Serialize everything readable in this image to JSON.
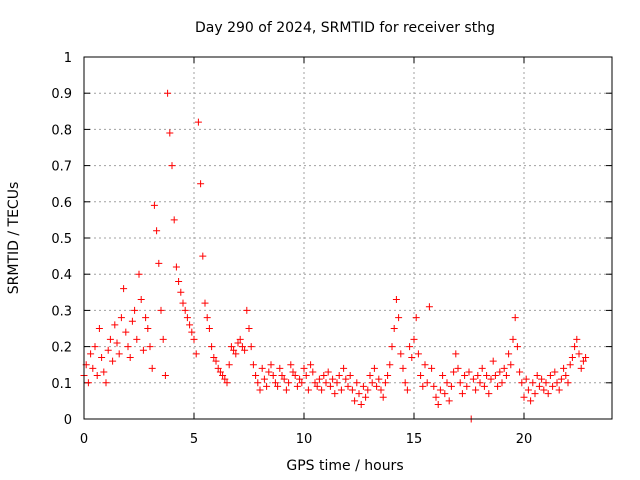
{
  "chart_data": {
    "type": "scatter",
    "title": "Day 290 of 2024, SRMTID for receiver sthg",
    "xlabel": "GPS time / hours",
    "ylabel": "SRMTID / TECUs",
    "xlim": [
      0,
      24
    ],
    "ylim": [
      0,
      1
    ],
    "xticks": [
      0,
      5,
      10,
      15,
      20
    ],
    "xtick_labels": [
      "0",
      "5",
      "10",
      "15",
      "20"
    ],
    "yticks": [
      0,
      0.1,
      0.2,
      0.3,
      0.4,
      0.5,
      0.6,
      0.7,
      0.8,
      0.9,
      1
    ],
    "ytick_labels": [
      "0",
      "0.1",
      "0.2",
      "0.3",
      "0.4",
      "0.5",
      "0.6",
      "0.7",
      "0.8",
      "0.9",
      "1"
    ],
    "grid": true,
    "marker": "+",
    "color": "#ff0000",
    "series": [
      {
        "name": "SRMTID",
        "points": [
          [
            0.0,
            0.12
          ],
          [
            0.1,
            0.15
          ],
          [
            0.2,
            0.1
          ],
          [
            0.3,
            0.18
          ],
          [
            0.4,
            0.14
          ],
          [
            0.5,
            0.2
          ],
          [
            0.6,
            0.12
          ],
          [
            0.7,
            0.25
          ],
          [
            0.8,
            0.17
          ],
          [
            0.9,
            0.13
          ],
          [
            1.0,
            0.1
          ],
          [
            1.1,
            0.19
          ],
          [
            1.2,
            0.22
          ],
          [
            1.3,
            0.16
          ],
          [
            1.4,
            0.26
          ],
          [
            1.5,
            0.21
          ],
          [
            1.6,
            0.18
          ],
          [
            1.7,
            0.28
          ],
          [
            1.8,
            0.36
          ],
          [
            1.9,
            0.24
          ],
          [
            2.0,
            0.2
          ],
          [
            2.1,
            0.17
          ],
          [
            2.2,
            0.27
          ],
          [
            2.3,
            0.3
          ],
          [
            2.4,
            0.22
          ],
          [
            2.5,
            0.4
          ],
          [
            2.6,
            0.33
          ],
          [
            2.7,
            0.19
          ],
          [
            2.8,
            0.28
          ],
          [
            2.9,
            0.25
          ],
          [
            3.0,
            0.2
          ],
          [
            3.1,
            0.14
          ],
          [
            3.2,
            0.59
          ],
          [
            3.3,
            0.52
          ],
          [
            3.4,
            0.43
          ],
          [
            3.5,
            0.3
          ],
          [
            3.6,
            0.22
          ],
          [
            3.7,
            0.12
          ],
          [
            3.8,
            0.9
          ],
          [
            3.9,
            0.79
          ],
          [
            4.0,
            0.7
          ],
          [
            4.1,
            0.55
          ],
          [
            4.2,
            0.42
          ],
          [
            4.3,
            0.38
          ],
          [
            4.4,
            0.35
          ],
          [
            4.5,
            0.32
          ],
          [
            4.6,
            0.3
          ],
          [
            4.7,
            0.28
          ],
          [
            4.8,
            0.26
          ],
          [
            4.9,
            0.24
          ],
          [
            5.0,
            0.22
          ],
          [
            5.1,
            0.18
          ],
          [
            5.2,
            0.82
          ],
          [
            5.3,
            0.65
          ],
          [
            5.4,
            0.45
          ],
          [
            5.5,
            0.32
          ],
          [
            5.6,
            0.28
          ],
          [
            5.7,
            0.25
          ],
          [
            5.8,
            0.2
          ],
          [
            5.9,
            0.17
          ],
          [
            6.0,
            0.16
          ],
          [
            6.1,
            0.14
          ],
          [
            6.2,
            0.13
          ],
          [
            6.3,
            0.12
          ],
          [
            6.4,
            0.11
          ],
          [
            6.5,
            0.1
          ],
          [
            6.6,
            0.15
          ],
          [
            6.7,
            0.2
          ],
          [
            6.8,
            0.19
          ],
          [
            6.9,
            0.18
          ],
          [
            7.0,
            0.21
          ],
          [
            7.1,
            0.22
          ],
          [
            7.2,
            0.2
          ],
          [
            7.3,
            0.19
          ],
          [
            7.4,
            0.3
          ],
          [
            7.5,
            0.25
          ],
          [
            7.6,
            0.2
          ],
          [
            7.7,
            0.15
          ],
          [
            7.8,
            0.12
          ],
          [
            7.9,
            0.1
          ],
          [
            8.0,
            0.08
          ],
          [
            8.1,
            0.14
          ],
          [
            8.2,
            0.11
          ],
          [
            8.3,
            0.09
          ],
          [
            8.4,
            0.13
          ],
          [
            8.5,
            0.15
          ],
          [
            8.6,
            0.12
          ],
          [
            8.7,
            0.1
          ],
          [
            8.8,
            0.09
          ],
          [
            8.9,
            0.14
          ],
          [
            9.0,
            0.12
          ],
          [
            9.1,
            0.11
          ],
          [
            9.2,
            0.08
          ],
          [
            9.3,
            0.1
          ],
          [
            9.4,
            0.15
          ],
          [
            9.5,
            0.13
          ],
          [
            9.6,
            0.12
          ],
          [
            9.7,
            0.09
          ],
          [
            9.8,
            0.11
          ],
          [
            9.9,
            0.1
          ],
          [
            10.0,
            0.14
          ],
          [
            10.1,
            0.12
          ],
          [
            10.2,
            0.08
          ],
          [
            10.3,
            0.15
          ],
          [
            10.4,
            0.13
          ],
          [
            10.5,
            0.1
          ],
          [
            10.6,
            0.09
          ],
          [
            10.7,
            0.11
          ],
          [
            10.8,
            0.08
          ],
          [
            10.9,
            0.12
          ],
          [
            11.0,
            0.1
          ],
          [
            11.1,
            0.13
          ],
          [
            11.2,
            0.09
          ],
          [
            11.3,
            0.11
          ],
          [
            11.4,
            0.07
          ],
          [
            11.5,
            0.1
          ],
          [
            11.6,
            0.12
          ],
          [
            11.7,
            0.08
          ],
          [
            11.8,
            0.14
          ],
          [
            11.9,
            0.11
          ],
          [
            12.0,
            0.09
          ],
          [
            12.1,
            0.12
          ],
          [
            12.2,
            0.08
          ],
          [
            12.3,
            0.05
          ],
          [
            12.4,
            0.1
          ],
          [
            12.5,
            0.07
          ],
          [
            12.6,
            0.04
          ],
          [
            12.7,
            0.09
          ],
          [
            12.8,
            0.06
          ],
          [
            12.9,
            0.08
          ],
          [
            13.0,
            0.12
          ],
          [
            13.1,
            0.1
          ],
          [
            13.2,
            0.14
          ],
          [
            13.3,
            0.09
          ],
          [
            13.4,
            0.11
          ],
          [
            13.5,
            0.08
          ],
          [
            13.6,
            0.06
          ],
          [
            13.7,
            0.1
          ],
          [
            13.8,
            0.12
          ],
          [
            13.9,
            0.15
          ],
          [
            14.0,
            0.2
          ],
          [
            14.1,
            0.25
          ],
          [
            14.2,
            0.33
          ],
          [
            14.3,
            0.28
          ],
          [
            14.4,
            0.18
          ],
          [
            14.5,
            0.14
          ],
          [
            14.6,
            0.1
          ],
          [
            14.7,
            0.08
          ],
          [
            14.8,
            0.2
          ],
          [
            14.9,
            0.17
          ],
          [
            15.0,
            0.22
          ],
          [
            15.1,
            0.28
          ],
          [
            15.2,
            0.18
          ],
          [
            15.3,
            0.12
          ],
          [
            15.4,
            0.09
          ],
          [
            15.5,
            0.15
          ],
          [
            15.6,
            0.1
          ],
          [
            15.7,
            0.31
          ],
          [
            15.8,
            0.14
          ],
          [
            15.9,
            0.09
          ],
          [
            16.0,
            0.06
          ],
          [
            16.1,
            0.04
          ],
          [
            16.2,
            0.08
          ],
          [
            16.3,
            0.12
          ],
          [
            16.4,
            0.07
          ],
          [
            16.5,
            0.1
          ],
          [
            16.6,
            0.05
          ],
          [
            16.7,
            0.09
          ],
          [
            16.8,
            0.13
          ],
          [
            16.9,
            0.18
          ],
          [
            17.0,
            0.14
          ],
          [
            17.1,
            0.1
          ],
          [
            17.2,
            0.07
          ],
          [
            17.3,
            0.12
          ],
          [
            17.4,
            0.09
          ],
          [
            17.5,
            0.13
          ],
          [
            17.6,
            0.0
          ],
          [
            17.7,
            0.11
          ],
          [
            17.8,
            0.08
          ],
          [
            17.9,
            0.12
          ],
          [
            18.0,
            0.1
          ],
          [
            18.1,
            0.14
          ],
          [
            18.2,
            0.09
          ],
          [
            18.3,
            0.12
          ],
          [
            18.4,
            0.07
          ],
          [
            18.5,
            0.11
          ],
          [
            18.6,
            0.16
          ],
          [
            18.7,
            0.12
          ],
          [
            18.8,
            0.09
          ],
          [
            18.9,
            0.13
          ],
          [
            19.0,
            0.1
          ],
          [
            19.1,
            0.14
          ],
          [
            19.2,
            0.12
          ],
          [
            19.3,
            0.18
          ],
          [
            19.4,
            0.15
          ],
          [
            19.5,
            0.22
          ],
          [
            19.6,
            0.28
          ],
          [
            19.7,
            0.2
          ],
          [
            19.8,
            0.13
          ],
          [
            19.9,
            0.1
          ],
          [
            20.0,
            0.06
          ],
          [
            20.1,
            0.11
          ],
          [
            20.2,
            0.08
          ],
          [
            20.3,
            0.05
          ],
          [
            20.4,
            0.1
          ],
          [
            20.5,
            0.07
          ],
          [
            20.6,
            0.12
          ],
          [
            20.7,
            0.09
          ],
          [
            20.8,
            0.11
          ],
          [
            20.9,
            0.08
          ],
          [
            21.0,
            0.1
          ],
          [
            21.1,
            0.07
          ],
          [
            21.2,
            0.12
          ],
          [
            21.3,
            0.09
          ],
          [
            21.4,
            0.13
          ],
          [
            21.5,
            0.1
          ],
          [
            21.6,
            0.08
          ],
          [
            21.7,
            0.11
          ],
          [
            21.8,
            0.14
          ],
          [
            21.9,
            0.12
          ],
          [
            22.0,
            0.1
          ],
          [
            22.1,
            0.15
          ],
          [
            22.2,
            0.17
          ],
          [
            22.3,
            0.2
          ],
          [
            22.4,
            0.22
          ],
          [
            22.5,
            0.18
          ],
          [
            22.6,
            0.14
          ],
          [
            22.7,
            0.16
          ],
          [
            22.8,
            0.17
          ]
        ]
      }
    ]
  }
}
